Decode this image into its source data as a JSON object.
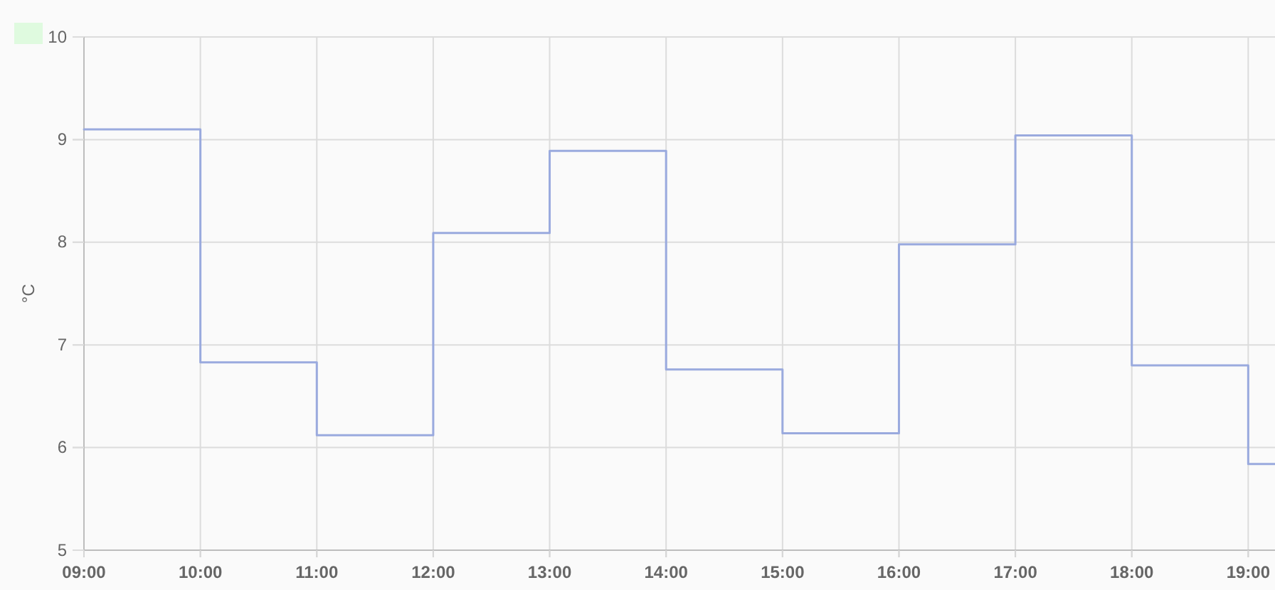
{
  "chart_data": {
    "type": "step",
    "ylabel": "°C",
    "x": [
      9,
      10,
      11,
      12,
      13,
      14,
      15,
      16,
      17,
      18,
      19,
      19.23
    ],
    "values": [
      9.1,
      6.83,
      6.12,
      8.09,
      8.89,
      6.76,
      6.14,
      7.98,
      9.04,
      6.8,
      5.84,
      5.84
    ],
    "color": "#9aaade",
    "xlim": [
      9,
      19.23
    ],
    "xticks": [
      {
        "value": 9,
        "label": "09:00"
      },
      {
        "value": 10,
        "label": "10:00"
      },
      {
        "value": 11,
        "label": "11:00"
      },
      {
        "value": 12,
        "label": "12:00"
      },
      {
        "value": 13,
        "label": "13:00"
      },
      {
        "value": 14,
        "label": "14:00"
      },
      {
        "value": 15,
        "label": "15:00"
      },
      {
        "value": 16,
        "label": "16:00"
      },
      {
        "value": 17,
        "label": "17:00"
      },
      {
        "value": 18,
        "label": "18:00"
      },
      {
        "value": 19,
        "label": "19:00"
      }
    ],
    "ylim": [
      5,
      10
    ],
    "yticks": [
      5,
      6,
      7,
      8,
      9,
      10
    ],
    "grid": true,
    "marker": "none",
    "line_style": "solid"
  }
}
